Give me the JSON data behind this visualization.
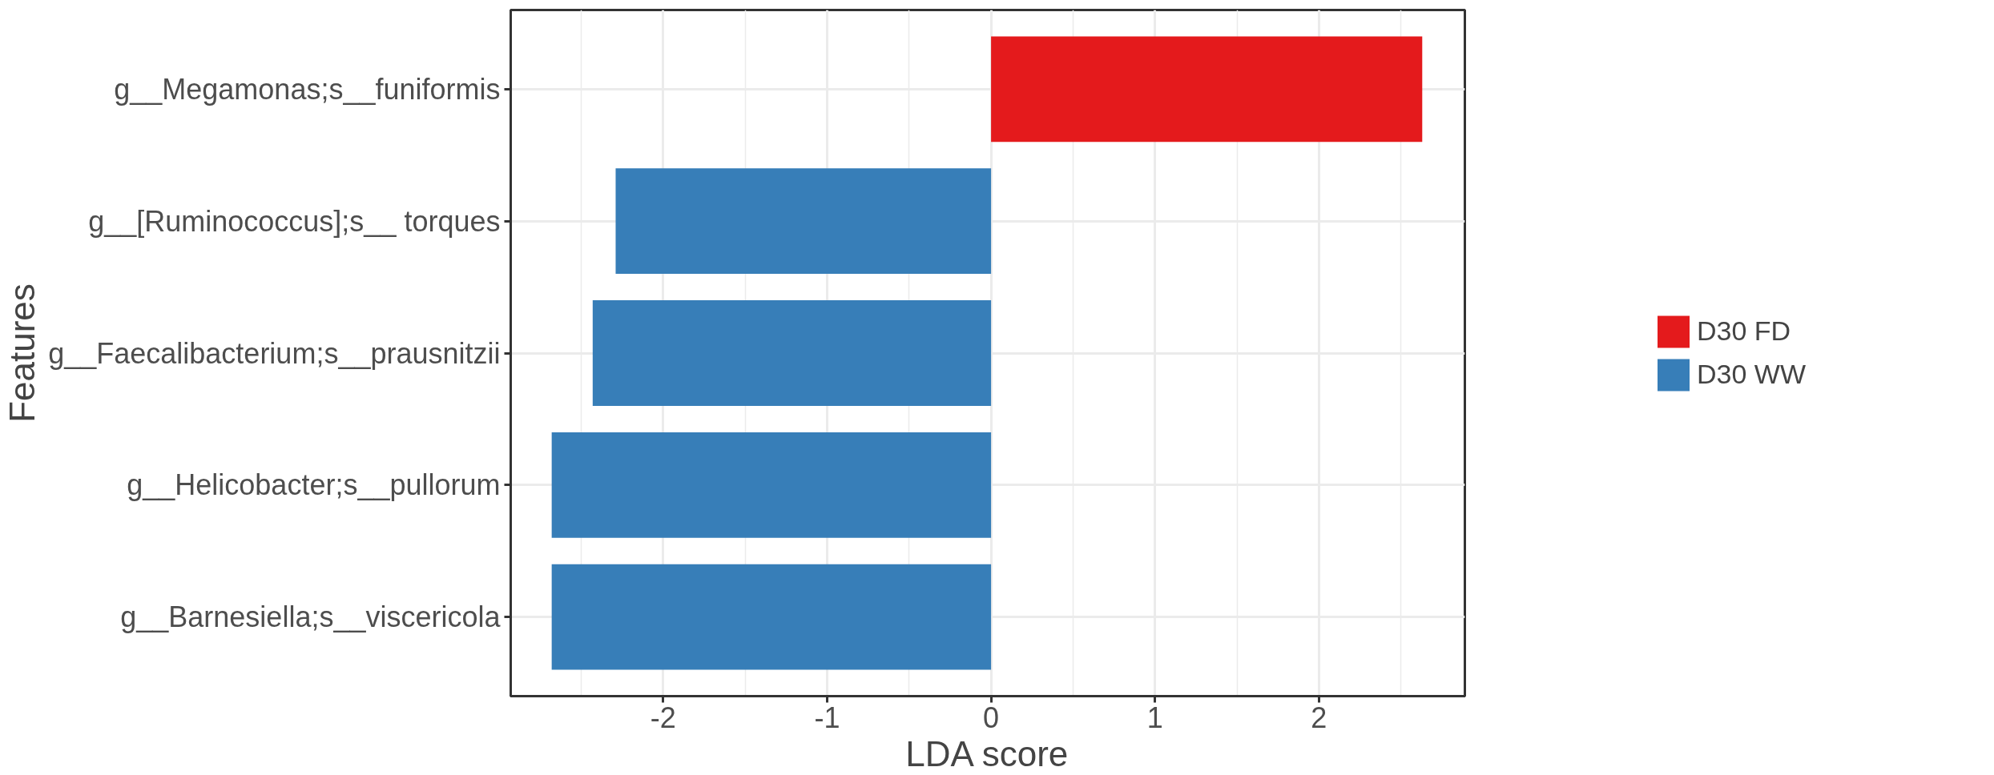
{
  "chart_data": {
    "type": "bar",
    "orientation": "horizontal",
    "xlabel": "LDA score",
    "ylabel": "Features",
    "categories": [
      "g__Megamonas;s__funiformis",
      "g__[Ruminococcus];s__ torques",
      "g__Faecalibacterium;s__prausnitzii",
      "g__Helicobacter;s__pullorum",
      "g__Barnesiella;s__viscericola"
    ],
    "series": [
      {
        "name": "D30 FD",
        "color": "#e41a1c",
        "values": [
          2.63,
          null,
          null,
          null,
          null
        ]
      },
      {
        "name": "D30 WW",
        "color": "#377eb8",
        "values": [
          null,
          -2.29,
          -2.43,
          -2.68,
          -2.68
        ]
      }
    ],
    "xlim": [
      -2.93,
      2.89
    ],
    "xticks": [
      -2,
      -1,
      0,
      1,
      2
    ],
    "grid": true,
    "legend": "right"
  }
}
